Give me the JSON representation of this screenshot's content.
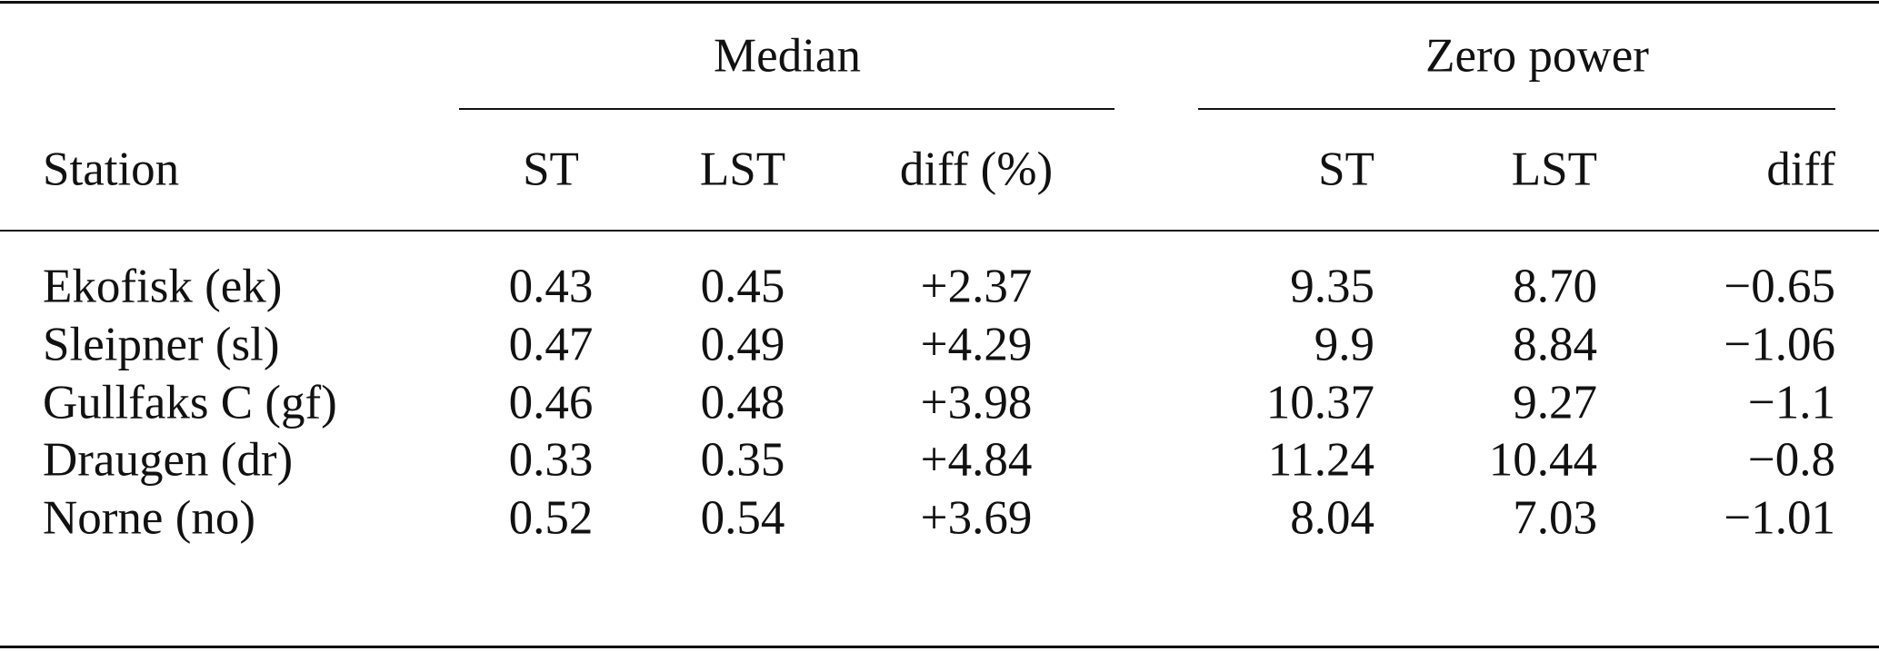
{
  "table": {
    "group_headers": [
      "Median",
      "Zero power"
    ],
    "columns": [
      "Station",
      "ST",
      "LST",
      "diff (%)",
      "ST",
      "LST",
      "diff"
    ],
    "rows": [
      [
        "Ekofisk (ek)",
        "0.43",
        "0.45",
        "+2.37",
        "9.35",
        "8.70",
        "−0.65"
      ],
      [
        "Sleipner (sl)",
        "0.47",
        "0.49",
        "+4.29",
        "9.9",
        "8.84",
        "−1.06"
      ],
      [
        "Gullfaks C (gf)",
        "0.46",
        "0.48",
        "+3.98",
        "10.37",
        "9.27",
        "−1.1"
      ],
      [
        "Draugen (dr)",
        "0.33",
        "0.35",
        "+4.84",
        "11.24",
        "10.44",
        "−0.8"
      ],
      [
        "Norne (no)",
        "0.52",
        "0.54",
        "+3.69",
        "8.04",
        "7.03",
        "−1.01"
      ]
    ]
  }
}
